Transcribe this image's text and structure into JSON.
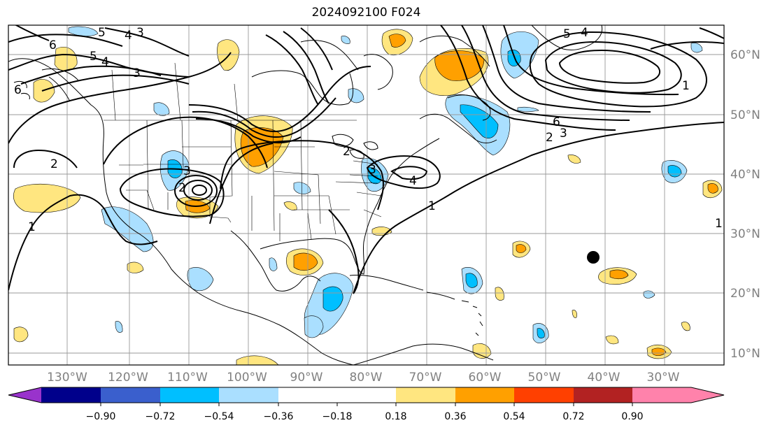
{
  "title": "2024092100 F024",
  "map": {
    "lon_ticks": [
      "130°W",
      "120°W",
      "110°W",
      "100°W",
      "90°W",
      "80°W",
      "70°W",
      "60°W",
      "50°W",
      "40°W",
      "30°W"
    ],
    "lat_ticks": [
      "60°N",
      "50°N",
      "40°N",
      "30°N",
      "20°N",
      "10°N"
    ],
    "contour_labels": [
      "6",
      "5",
      "4",
      "3",
      "2",
      "1",
      "6",
      "2",
      "3",
      "4",
      "2",
      "1",
      "1",
      "3",
      "5",
      "4",
      "3",
      "2",
      "6",
      "5",
      "4",
      "3",
      "1"
    ],
    "colors": {
      "land_outline": "#000000",
      "grid": "#999999",
      "contour": "#000000",
      "marker": "#000000"
    }
  },
  "colorbar": {
    "tick_labels": [
      "−0.90",
      "−0.72",
      "−0.54",
      "−0.36",
      "−0.18",
      "0.18",
      "0.36",
      "0.54",
      "0.72",
      "0.90"
    ],
    "colors": [
      "#9933cc",
      "#00008b",
      "#3a5fcd",
      "#00bfff",
      "#aadfff",
      "#ffffff",
      "#ffe680",
      "#ffa000",
      "#ff4000",
      "#b22222",
      "#ff82ab"
    ]
  }
}
